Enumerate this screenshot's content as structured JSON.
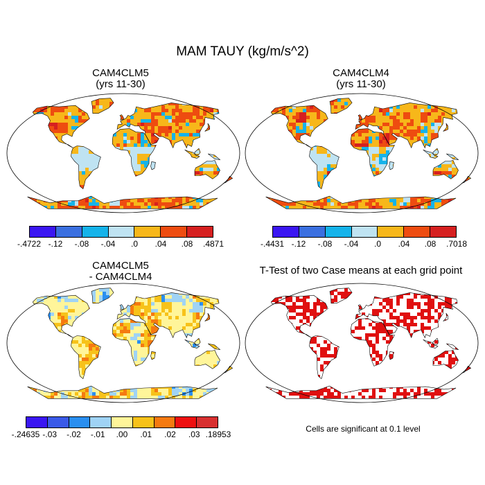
{
  "figure": {
    "title": "MAM TAUY (kg/m/s^2)"
  },
  "panels": [
    {
      "title_line1": "CAM4CLM5",
      "title_line2": "(yrs 11-30)",
      "colorbar": {
        "colors": [
          "#3a16f2",
          "#3a6fe0",
          "#15b3ea",
          "#bfe3f2",
          "#f7b71a",
          "#ee4c10",
          "#d62020"
        ],
        "labels": [
          "-.4722",
          "-.12",
          "-.08",
          "-.04",
          ".0",
          ".04",
          ".08",
          ".4871"
        ]
      }
    },
    {
      "title_line1": "CAM4CLM4",
      "title_line2": "(yrs 11-30)",
      "colorbar": {
        "colors": [
          "#3a16f2",
          "#3a6fe0",
          "#15b3ea",
          "#bfe3f2",
          "#f7b71a",
          "#ee4c10",
          "#d62020"
        ],
        "labels": [
          "-.4431",
          "-.12",
          "-.08",
          "-.04",
          ".0",
          ".04",
          ".08",
          ".7018"
        ]
      }
    },
    {
      "title_line1": "CAM4CLM5",
      "title_line2": "- CAM4CLM4",
      "colorbar": {
        "colors": [
          "#3a16f2",
          "#3a5ae8",
          "#2a8ff0",
          "#9fd3f5",
          "#fff59a",
          "#f7c21a",
          "#f57a10",
          "#ee1010",
          "#d83030"
        ],
        "labels": [
          "-.24635",
          "-.03",
          "-.02",
          "-.01",
          ".00",
          ".01",
          ".02",
          ".03",
          ".18953"
        ]
      }
    },
    {
      "title_line1": "T-Test of two Case means at each grid point",
      "note": "Cells are significant at 0.1 level",
      "significance_color": "#e01010"
    }
  ]
}
